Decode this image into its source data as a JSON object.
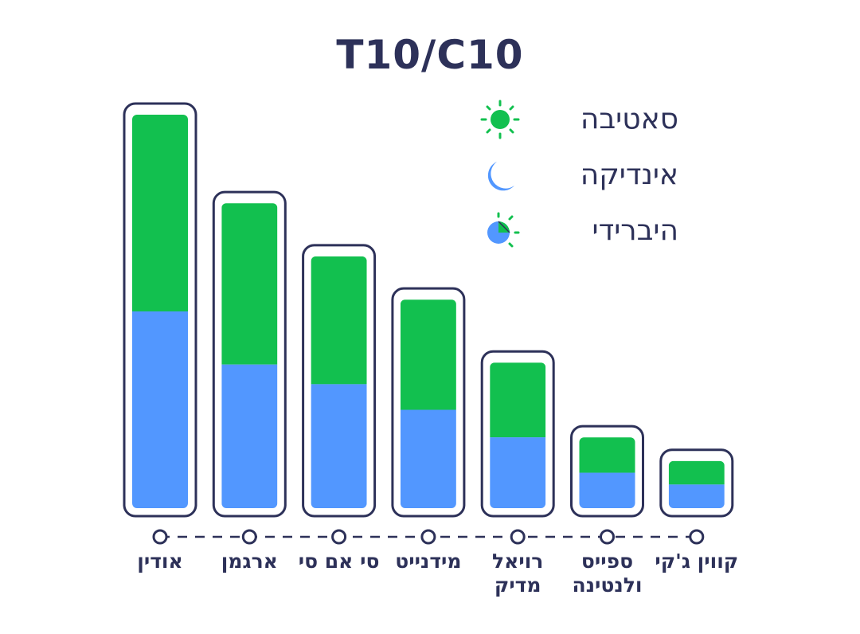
{
  "chart_data": {
    "type": "bar",
    "stacked": true,
    "title": "T10/C10",
    "categories": [
      "אודין",
      "ארגמן",
      "סי אם סי",
      "מידנייט",
      "רויאל מדיק",
      "ספייס ולנטינה",
      "קווין ג'קי"
    ],
    "series": [
      {
        "name": "אינדיקה",
        "color": "#5297ff",
        "values": [
          10,
          7.3,
          6.3,
          5.0,
          3.6,
          1.8,
          1.2
        ]
      },
      {
        "name": "סאטיבה",
        "color": "#12c04f",
        "values": [
          10,
          8.2,
          6.5,
          5.6,
          3.8,
          1.8,
          1.2
        ]
      }
    ],
    "legend": [
      {
        "label": "סאטיבה",
        "icon": "sun-icon"
      },
      {
        "label": "אינדיקה",
        "icon": "moon-icon"
      },
      {
        "label": "היברידי",
        "icon": "hybrid-icon"
      }
    ],
    "legend_position": "top-right",
    "grid": false,
    "axis_style": "dashed-line-with-circle-markers",
    "colors": {
      "indica": "#5297ff",
      "sativa": "#12c04f",
      "outline": "#2d3159",
      "text": "#2d3159"
    }
  }
}
